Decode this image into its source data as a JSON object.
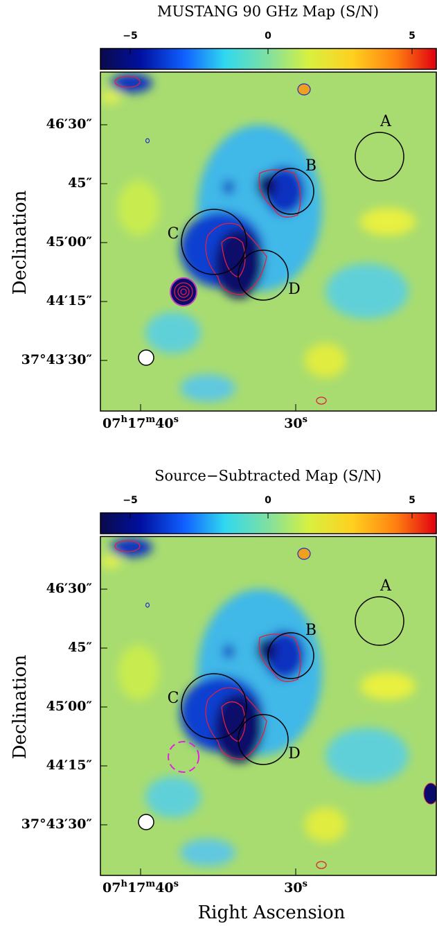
{
  "panels": [
    {
      "title": "MUSTANG 90 GHz Map (S/N)",
      "colorbar_ticks": [
        "−5",
        "0",
        "5"
      ],
      "y_ticks": [
        "46′30″",
        "45″",
        "45′00″",
        "44′15″",
        "37°43′30″"
      ],
      "x_ticks": [
        [
          "07",
          "h",
          "17",
          "m",
          "40",
          "s"
        ],
        [
          "30",
          "s"
        ]
      ],
      "regions": [
        "A",
        "B",
        "C",
        "D"
      ],
      "y_label": "Declination"
    },
    {
      "title": "Source−Subtracted Map (S/N)",
      "colorbar_ticks": [
        "−5",
        "0",
        "5"
      ],
      "y_ticks": [
        "46′30″",
        "45″",
        "45′00″",
        "44′15″",
        "37°43′30″"
      ],
      "x_ticks": [
        [
          "07",
          "h",
          "17",
          "m",
          "40",
          "s"
        ],
        [
          "30",
          "s"
        ]
      ],
      "regions": [
        "A",
        "B",
        "C",
        "D"
      ],
      "y_label": "Declination"
    }
  ],
  "x_label": "Right Ascension"
}
